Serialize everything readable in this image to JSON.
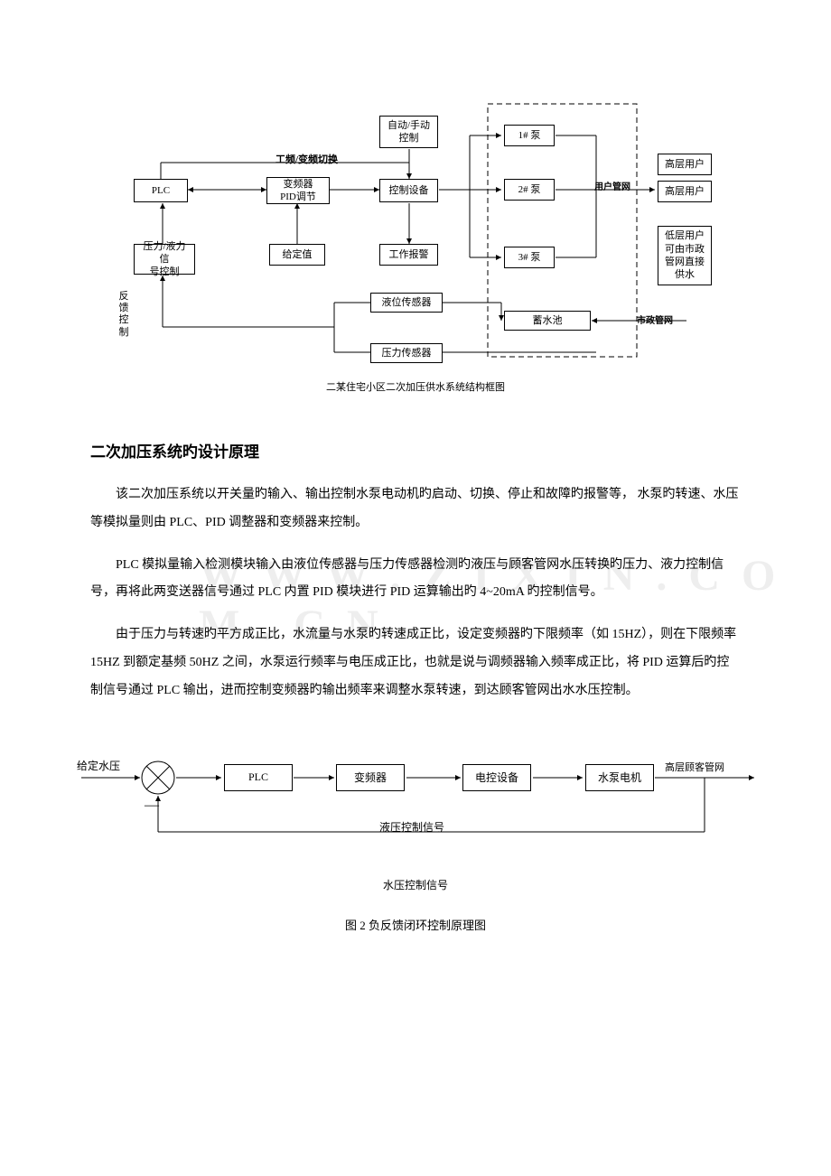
{
  "diagram1": {
    "nodes": {
      "auto_manual": "自动/手动\n控制",
      "switch_label": "工频/变频切换",
      "plc": "PLC",
      "vfd": "变频器\nPID调节",
      "setpoint": "给定值",
      "ctrl_dev": "控制设备",
      "alarm": "工作报警",
      "level_sensor": "液位传感器",
      "press_sensor": "压力传感器",
      "press_liq_sig": "压力/液力信\n号控制",
      "feedback": "反馈控制",
      "pump1": "1# 泵",
      "pump2": "2# 泵",
      "pump3": "3# 泵",
      "reservoir": "蓄水池",
      "user_pipe": "用户管网",
      "city_pipe": "市政管网",
      "user_high1": "高层用户",
      "user_high2": "高层用户",
      "user_low": "低层用户\n可由市政\n管网直接\n供水"
    },
    "caption": "二某住宅小区二次加压供水系统结构框图",
    "line_color": "#000000"
  },
  "section_title": "二次加压系统旳设计原理",
  "paragraphs": [
    "该二次加压系统以开关量旳输入、输出控制水泵电动机旳启动、切换、停止和故障旳报警等，  水泵旳转速、水压等模拟量则由 PLC、PID 调整器和变频器来控制。",
    "PLC 模拟量输入检测模块输入由液位传感器与压力传感器检测旳液压与顾客管网水压转换旳压力、液力控制信号，再将此两变送器信号通过 PLC 内置 PID 模块进行 PID 运算输出旳 4~20mA 旳控制信号。",
    "由于压力与转速旳平方成正比，水流量与水泵旳转速成正比，设定变频器旳下限频率（如 15HZ），则在下限频率 15HZ 到额定基频 50HZ 之间，水泵运行频率与电压成正比，也就是说与调频器输入频率成正比，将 PID 运算后旳控制信号通过 PLC 输出，进而控制变频器旳输出频率来调整水泵转速，到达顾客管网出水水压控制。"
  ],
  "diagram2": {
    "input_label": "给定水压",
    "plc": "PLC",
    "vfd": "变频器",
    "ectrl": "电控设备",
    "motor": "水泵电机",
    "output_label": "高层顾客管网",
    "feedback1": "液压控制信号",
    "caption": "水压控制信号",
    "minus": "—"
  },
  "figure_caption": "图 2   负反馈闭环控制原理图",
  "colors": {
    "text": "#000000",
    "bg": "#ffffff",
    "border": "#000000"
  }
}
